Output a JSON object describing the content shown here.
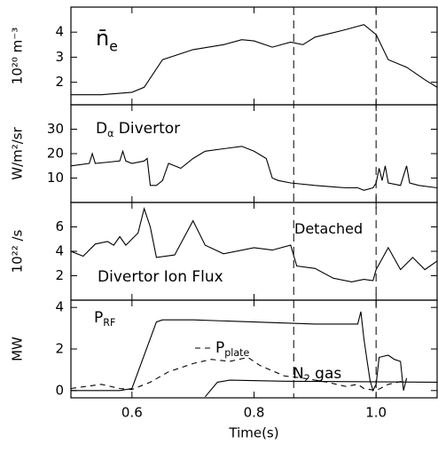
{
  "chart_data": [
    {
      "type": "line",
      "ylabel": "10²⁰ m⁻³",
      "ylim": [
        1.1,
        5.0
      ],
      "yticks": [
        2,
        3,
        4
      ],
      "annotations": [
        {
          "text": "n̄",
          "sub": "e"
        }
      ],
      "series": [
        {
          "color": "#000000",
          "x": [
            0.5,
            0.55,
            0.6,
            0.62,
            0.65,
            0.7,
            0.75,
            0.78,
            0.8,
            0.83,
            0.86,
            0.88,
            0.9,
            0.95,
            0.98,
            1.0,
            1.02,
            1.05,
            1.08,
            1.1
          ],
          "values": [
            1.5,
            1.5,
            1.6,
            1.8,
            2.9,
            3.3,
            3.5,
            3.7,
            3.65,
            3.4,
            3.6,
            3.5,
            3.8,
            4.1,
            4.3,
            3.9,
            2.9,
            2.6,
            2.1,
            1.8
          ]
        }
      ]
    },
    {
      "type": "line",
      "ylabel": "W/m²/sr",
      "ylim": [
        0,
        40
      ],
      "yticks": [
        10,
        20,
        30
      ],
      "annotations": [
        {
          "text": "D",
          "sub": "α",
          "rest": " Divertor"
        }
      ],
      "series": [
        {
          "color": "#000000",
          "x": [
            0.5,
            0.53,
            0.535,
            0.54,
            0.58,
            0.585,
            0.59,
            0.6,
            0.62,
            0.625,
            0.63,
            0.64,
            0.65,
            0.66,
            0.68,
            0.7,
            0.72,
            0.75,
            0.78,
            0.8,
            0.82,
            0.83,
            0.84,
            0.86,
            0.9,
            0.95,
            0.97,
            0.98,
            0.995,
            1.0,
            1.005,
            1.01,
            1.015,
            1.02,
            1.04,
            1.05,
            1.055,
            1.07,
            1.1
          ],
          "values": [
            15,
            16,
            20,
            16,
            17,
            21,
            17,
            16,
            17,
            18,
            7,
            7,
            9,
            16,
            14,
            18,
            21,
            22,
            23,
            21,
            18,
            10,
            9,
            8,
            7,
            6,
            6,
            5,
            6,
            8,
            14,
            9,
            15,
            8,
            7,
            15,
            8,
            7,
            6
          ]
        }
      ]
    },
    {
      "type": "line",
      "ylabel": "10²² /s",
      "ylim": [
        0,
        8
      ],
      "yticks": [
        2,
        4,
        6
      ],
      "annotations": [
        {
          "text": "Detached"
        },
        {
          "text": "Divertor Ion Flux"
        }
      ],
      "series": [
        {
          "color": "#000000",
          "x": [
            0.5,
            0.52,
            0.54,
            0.56,
            0.57,
            0.58,
            0.59,
            0.61,
            0.62,
            0.63,
            0.64,
            0.67,
            0.7,
            0.72,
            0.75,
            0.8,
            0.83,
            0.86,
            0.87,
            0.9,
            0.93,
            0.96,
            0.98,
            0.995,
            1.0,
            1.02,
            1.04,
            1.06,
            1.08,
            1.1
          ],
          "values": [
            4,
            3.6,
            4.6,
            4.8,
            4.5,
            5.2,
            4.5,
            5.5,
            7.5,
            6,
            3.5,
            3.7,
            6.5,
            4.5,
            3.8,
            4.3,
            4.1,
            4.5,
            2.8,
            2.6,
            1.8,
            1.5,
            1.7,
            1.6,
            2.5,
            4.3,
            2.5,
            3.5,
            2.5,
            3.2
          ]
        }
      ]
    },
    {
      "type": "line",
      "ylabel": "MW",
      "ylim": [
        -0.35,
        4.35
      ],
      "yticks": [
        0,
        2,
        4
      ],
      "xlim": [
        0.5,
        1.1
      ],
      "xticks": [
        0.6,
        0.8,
        {
          "value": 1,
          "label": "1.0"
        }
      ],
      "xlabel": "Time(s)",
      "vlines": [
        0.865,
        1.0
      ],
      "annotations": [
        {
          "text": "P",
          "sub": "RF"
        },
        {
          "text": "P",
          "sub": "plate"
        },
        {
          "text": "N",
          "sub": "2",
          "rest": " gas"
        }
      ],
      "series": [
        {
          "color": "#000000",
          "x": [
            0.5,
            0.58,
            0.6,
            0.63,
            0.64,
            0.65,
            0.7,
            0.8,
            0.9,
            0.97,
            0.975,
            0.98,
            0.985,
            0.99,
            0.995,
            1.0,
            1.005,
            1.02,
            1.03,
            1.04,
            1.045,
            1.05
          ],
          "values": [
            0,
            0,
            0.1,
            2.5,
            3.3,
            3.4,
            3.4,
            3.3,
            3.2,
            3.2,
            3.8,
            2.5,
            1.5,
            0.5,
            0,
            0.3,
            1.6,
            1.7,
            1.5,
            1.4,
            0,
            0.6
          ]
        },
        {
          "color": "#000000",
          "dash": "dashed",
          "x": [
            0.5,
            0.55,
            0.58,
            0.6,
            0.63,
            0.66,
            0.7,
            0.73,
            0.76,
            0.79,
            0.81,
            0.85,
            0.88,
            0.92,
            0.95,
            0.97,
            0.98,
            1.0,
            1.02,
            1.05
          ],
          "values": [
            0.1,
            0.3,
            0.1,
            0.05,
            0.4,
            0.9,
            1.3,
            1.5,
            1.4,
            1.6,
            1.2,
            0.7,
            0.6,
            0.4,
            0.2,
            0.3,
            0.1,
            0,
            0.3,
            0.5
          ]
        },
        {
          "color": "#000000",
          "x": [
            0.72,
            0.74,
            0.76,
            0.85,
            1.1
          ],
          "values": [
            -0.3,
            0.4,
            0.5,
            0.45,
            0.4
          ]
        }
      ]
    }
  ]
}
